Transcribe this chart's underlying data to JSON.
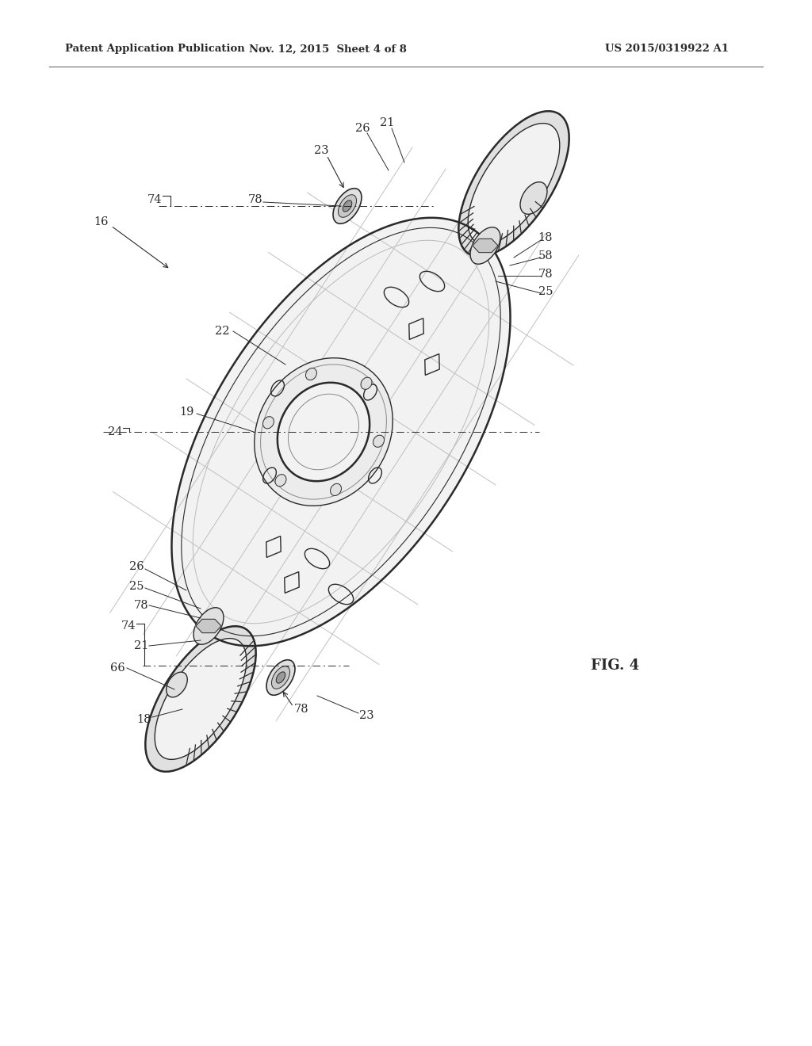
{
  "bg_color": "#ffffff",
  "header_left": "Patent Application Publication",
  "header_center": "Nov. 12, 2015  Sheet 4 of 8",
  "header_right": "US 2015/0319922 A1",
  "fig_label": "FIG. 4",
  "line_color": "#2a2a2a",
  "light_line": "#888888",
  "lighter_line": "#bbbbbb",
  "fill_light": "#f2f2f2",
  "fill_medium": "#e0e0e0",
  "fill_dark": "#c8c8c8"
}
